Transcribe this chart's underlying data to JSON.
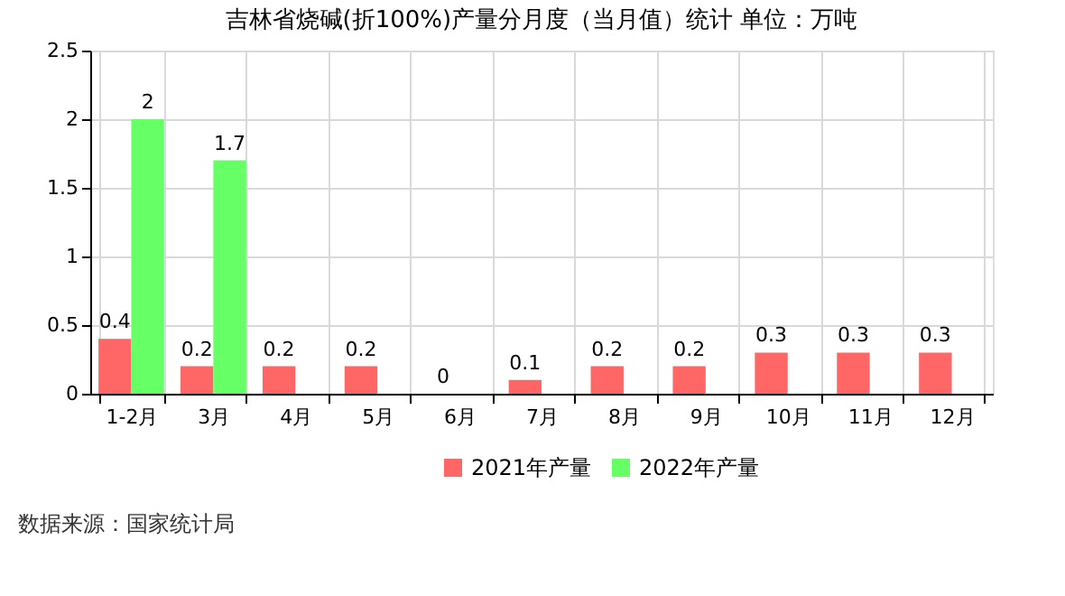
{
  "chart_data": {
    "type": "bar",
    "title": "吉林省烧碱(折100%)产量分月度（当月值）统计 单位：万吨",
    "categories": [
      "1-2月",
      "3月",
      "4月",
      "5月",
      "6月",
      "7月",
      "8月",
      "9月",
      "10月",
      "11月",
      "12月"
    ],
    "series": [
      {
        "name": "2021年产量",
        "color": "#ff6666",
        "values": [
          0.4,
          0.2,
          0.2,
          0.2,
          0,
          0.1,
          0.2,
          0.2,
          0.3,
          0.3,
          0.3
        ]
      },
      {
        "name": "2022年产量",
        "color": "#66ff66",
        "values": [
          2,
          1.7,
          null,
          null,
          null,
          null,
          null,
          null,
          null,
          null,
          null
        ]
      }
    ],
    "ylim": [
      0,
      2.5
    ],
    "yticks": [
      0,
      0.5,
      1,
      1.5,
      2,
      2.5
    ],
    "grid": true,
    "legend": "bottom",
    "data_labels": true,
    "annotations": [
      "数据来源：国家统计局"
    ]
  }
}
